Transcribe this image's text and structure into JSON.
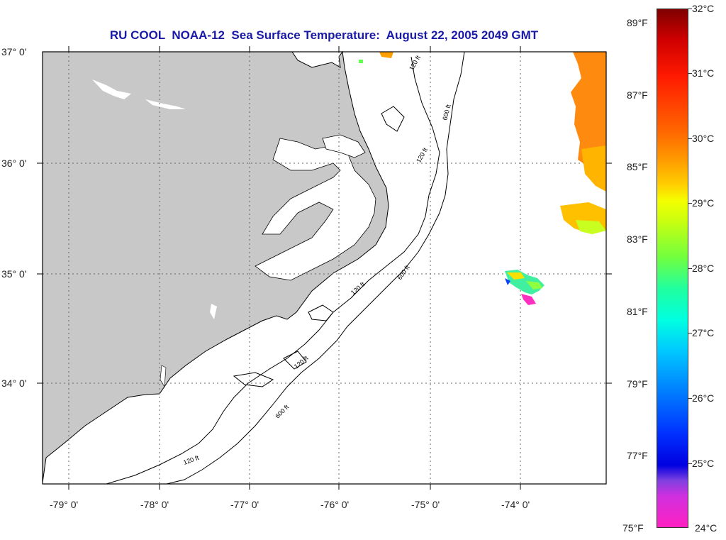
{
  "title": "RU COOL  NOAA-12  Sea Surface Temperature:  August 22, 2005 2049 GMT",
  "lat_labels": [
    "37° 0'",
    "36° 0'",
    "35° 0'",
    "34° 0'"
  ],
  "lon_labels": [
    "-79° 0'",
    "-78° 0'",
    "-77° 0'",
    "-76° 0'",
    "-75° 0'",
    "-74° 0'"
  ],
  "contours": [
    "120 ft",
    "600 ft"
  ],
  "colorbar": {
    "fahrenheit": [
      "89°F",
      "87°F",
      "85°F",
      "83°F",
      "81°F",
      "79°F",
      "77°F",
      "75°F"
    ],
    "celsius": [
      "32°C",
      "31°C",
      "30°C",
      "29°C",
      "28°C",
      "27°C",
      "26°C",
      "25°C",
      "24°C"
    ]
  },
  "colors": {
    "land": "#c8c8c8",
    "title": "#1a1aa8",
    "ocean": "#ffffff"
  }
}
